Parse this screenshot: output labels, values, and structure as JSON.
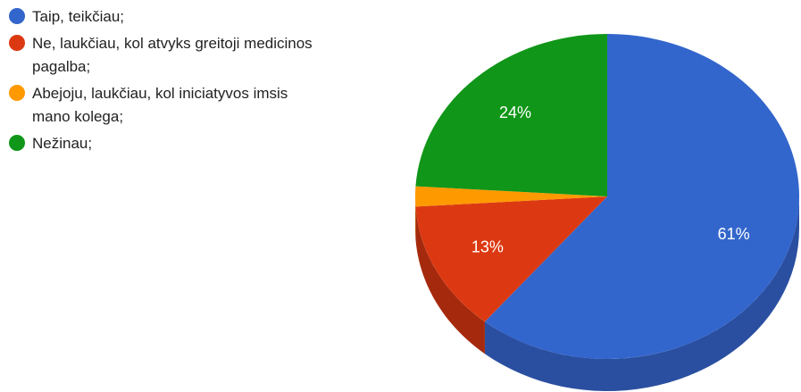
{
  "chart_data": {
    "type": "pie",
    "style": "3d",
    "legend_position": "left",
    "series": [
      {
        "name": "Taip, teikčiau;",
        "value": 61,
        "label": "61%",
        "color": "#3366cc",
        "side_color": "#2a4fa0"
      },
      {
        "name": "Ne, laukčiau, kol atvyks greitoji medicinos pagalba;",
        "value": 13,
        "label": "13%",
        "color": "#dc3912",
        "side_color": "#a52a0d"
      },
      {
        "name": "Abejoju, laukčiau, kol iniciatyvos imsis mano kolega;",
        "value": 2,
        "label": "",
        "color": "#ff9900",
        "side_color": "#c47600"
      },
      {
        "name": "Nežinau;",
        "value": 24,
        "label": "24%",
        "color": "#109618",
        "side_color": "#0b6e11"
      }
    ]
  }
}
